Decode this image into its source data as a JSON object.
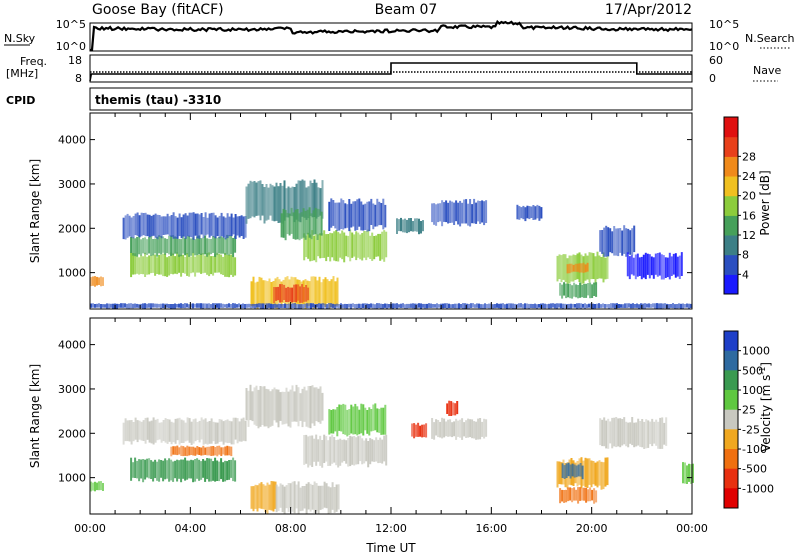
{
  "header": {
    "station": "Goose Bay (fitACF)",
    "beam": "Beam 07",
    "date": "17/Apr/2012"
  },
  "panels": {
    "nsky": {
      "label": "N.Sky",
      "left_ticks": [
        "10^5",
        "10^0"
      ],
      "right_ticks": [
        "10^5",
        "10^0"
      ],
      "right_label": "N.Search"
    },
    "freq": {
      "label_top": "Freq.",
      "label_unit": "[MHz]",
      "left_ticks": [
        "18",
        "8"
      ],
      "right_ticks": [
        "60",
        "0"
      ],
      "right_label": "Nave"
    },
    "cpid": {
      "label": "CPID",
      "value": "themis (tau) -3310"
    }
  },
  "chart_data": [
    {
      "type": "heatmap",
      "name": "power",
      "ylabel": "Slant Range [km]",
      "xlabel": "",
      "yticks": [
        1000,
        2000,
        3000,
        4000
      ],
      "ylim": [
        180,
        4600
      ],
      "xlim_hours": [
        0,
        24
      ],
      "colorbar": {
        "label": "Power [dB]",
        "ticks": [
          "4",
          "8",
          "12",
          "16",
          "20",
          "24",
          "28"
        ],
        "colors": [
          "#1a1aff",
          "#2b4fc0",
          "#3c7f86",
          "#46a05a",
          "#8ccc3c",
          "#f0c020",
          "#f08a1a",
          "#e8401a",
          "#e01010"
        ]
      },
      "regions": [
        {
          "t0": 0.0,
          "t1": 0.5,
          "r0": 700,
          "r1": 900,
          "level": 6
        },
        {
          "t0": 1.6,
          "t1": 5.8,
          "r0": 950,
          "r1": 1400,
          "level": 4
        },
        {
          "t0": 1.6,
          "t1": 5.8,
          "r0": 1400,
          "r1": 1800,
          "level": 3
        },
        {
          "t0": 1.3,
          "t1": 6.2,
          "r0": 1800,
          "r1": 2300,
          "level": 1
        },
        {
          "t0": 6.2,
          "t1": 9.3,
          "r0": 2200,
          "r1": 3000,
          "level": 2
        },
        {
          "t0": 8.5,
          "t1": 11.8,
          "r0": 1300,
          "r1": 1900,
          "level": 4
        },
        {
          "t0": 9.5,
          "t1": 11.8,
          "r0": 2000,
          "r1": 2600,
          "level": 1
        },
        {
          "t0": 7.6,
          "t1": 9.2,
          "r0": 1800,
          "r1": 2400,
          "level": 3
        },
        {
          "t0": 6.4,
          "t1": 9.9,
          "r0": 250,
          "r1": 850,
          "level": 5
        },
        {
          "t0": 7.3,
          "t1": 8.7,
          "r0": 350,
          "r1": 700,
          "level": 7
        },
        {
          "t0": 12.2,
          "t1": 13.3,
          "r0": 1900,
          "r1": 2200,
          "level": 2
        },
        {
          "t0": 13.6,
          "t1": 15.8,
          "r0": 2100,
          "r1": 2600,
          "level": 1
        },
        {
          "t0": 17.0,
          "t1": 18.0,
          "r0": 2200,
          "r1": 2500,
          "level": 1
        },
        {
          "t0": 18.6,
          "t1": 20.6,
          "r0": 800,
          "r1": 1400,
          "level": 4
        },
        {
          "t0": 19.0,
          "t1": 19.8,
          "r0": 1000,
          "r1": 1200,
          "level": 6
        },
        {
          "t0": 18.7,
          "t1": 20.2,
          "r0": 450,
          "r1": 750,
          "level": 3
        },
        {
          "t0": 20.3,
          "t1": 21.7,
          "r0": 1400,
          "r1": 2000,
          "level": 1
        },
        {
          "t0": 21.4,
          "t1": 23.6,
          "r0": 900,
          "r1": 1400,
          "level": 0
        },
        {
          "t0": 0.0,
          "t1": 24.0,
          "r0": 200,
          "r1": 300,
          "level": 1
        }
      ]
    },
    {
      "type": "heatmap",
      "name": "velocity",
      "ylabel": "Slant Range [km]",
      "xlabel": "Time UT",
      "yticks": [
        1000,
        2000,
        3000,
        4000
      ],
      "ylim": [
        180,
        4600
      ],
      "xlim_hours": [
        0,
        24
      ],
      "xticks": [
        "00:00",
        "04:00",
        "08:00",
        "12:00",
        "16:00",
        "20:00",
        "00:00"
      ],
      "colorbar": {
        "label": "Velocity [m s",
        "label_sup": "-1",
        "label_close": "]",
        "ticks": [
          "1000",
          "500",
          "100",
          "25",
          "-25",
          "-100",
          "-500",
          "-1000"
        ],
        "colors": [
          "#1e3fc8",
          "#2e6aa0",
          "#3a9a50",
          "#5fc840",
          "#c8c8c0",
          "#f0a820",
          "#f07010",
          "#e83010",
          "#e00000"
        ]
      },
      "regions": [
        {
          "t0": 0.0,
          "t1": 0.5,
          "r0": 700,
          "r1": 900,
          "level": 3
        },
        {
          "t0": 1.6,
          "t1": 5.8,
          "r0": 950,
          "r1": 1400,
          "level": 2
        },
        {
          "t0": 3.2,
          "t1": 5.6,
          "r0": 1500,
          "r1": 1700,
          "level": 6
        },
        {
          "t0": 1.3,
          "t1": 6.2,
          "r0": 1800,
          "r1": 2300,
          "level": 4
        },
        {
          "t0": 6.2,
          "t1": 9.3,
          "r0": 2200,
          "r1": 3000,
          "level": 4
        },
        {
          "t0": 8.5,
          "t1": 11.8,
          "r0": 1300,
          "r1": 1900,
          "level": 4
        },
        {
          "t0": 9.5,
          "t1": 11.8,
          "r0": 2000,
          "r1": 2600,
          "level": 3
        },
        {
          "t0": 6.4,
          "t1": 7.4,
          "r0": 250,
          "r1": 850,
          "level": 5
        },
        {
          "t0": 7.4,
          "t1": 9.9,
          "r0": 250,
          "r1": 850,
          "level": 4
        },
        {
          "t0": 12.8,
          "t1": 13.4,
          "r0": 1900,
          "r1": 2200,
          "level": 7
        },
        {
          "t0": 14.2,
          "t1": 14.6,
          "r0": 2400,
          "r1": 2700,
          "level": 7
        },
        {
          "t0": 13.6,
          "t1": 15.8,
          "r0": 1900,
          "r1": 2300,
          "level": 4
        },
        {
          "t0": 18.6,
          "t1": 20.6,
          "r0": 800,
          "r1": 1400,
          "level": 5
        },
        {
          "t0": 18.8,
          "t1": 19.6,
          "r0": 1000,
          "r1": 1300,
          "level": 1
        },
        {
          "t0": 18.7,
          "t1": 20.2,
          "r0": 450,
          "r1": 750,
          "level": 6
        },
        {
          "t0": 20.3,
          "t1": 23.0,
          "r0": 1700,
          "r1": 2300,
          "level": 4
        },
        {
          "t0": 23.6,
          "t1": 24.0,
          "r0": 900,
          "r1": 1300,
          "level": 3
        }
      ]
    }
  ]
}
